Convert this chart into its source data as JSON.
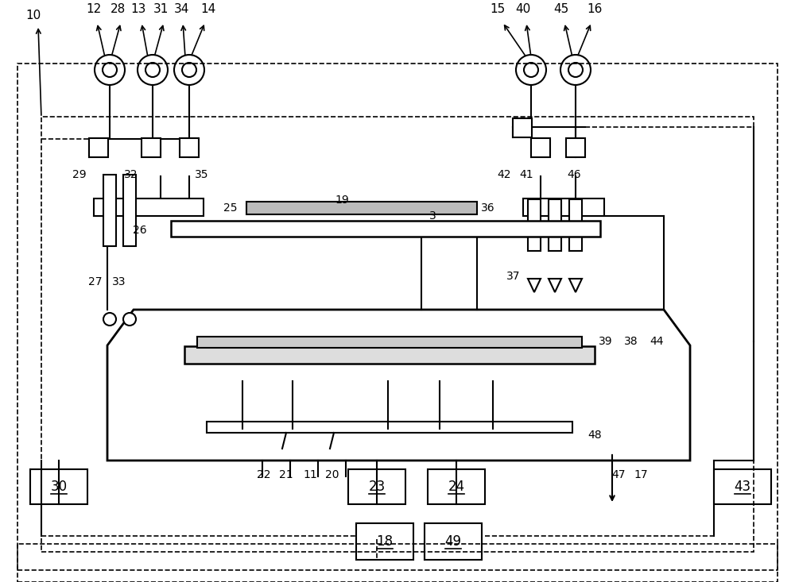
{
  "bg_color": "#ffffff",
  "line_color": "#000000",
  "fig_width": 10.0,
  "fig_height": 7.33
}
